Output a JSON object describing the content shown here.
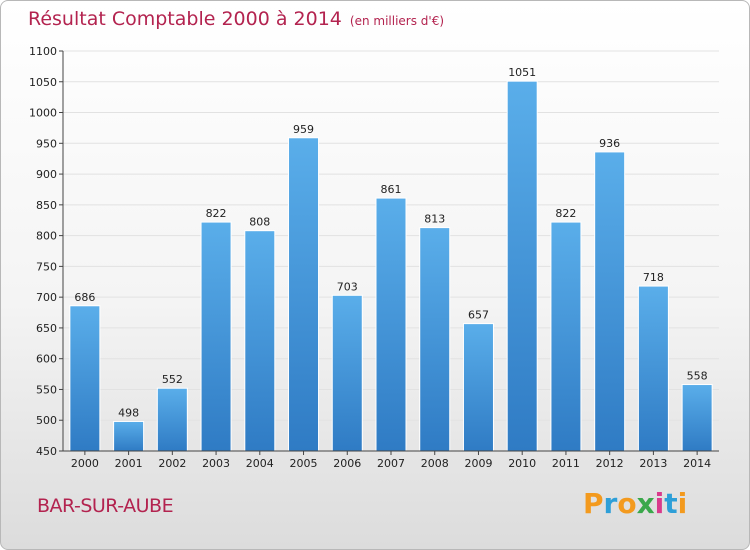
{
  "header": {
    "title": "Résultat Comptable 2000 à 2014",
    "subtitle": "(en milliers d'€)"
  },
  "footer": {
    "town": "BAR-SUR-AUBE"
  },
  "logo": {
    "letters": [
      "P",
      "r",
      "o",
      "x",
      "i",
      "t",
      "i"
    ],
    "colors": [
      "#f39a1e",
      "#2e9fd8",
      "#f39a1e",
      "#3aa84b",
      "#d93a8c",
      "#2e9fd8",
      "#f39a1e"
    ]
  },
  "colors": {
    "bar_top": "#5aaeea",
    "bar_bottom": "#2f7bc4",
    "grid": "#e2e2e2",
    "axis": "#444444"
  },
  "chart_data": {
    "type": "bar",
    "title": "Résultat Comptable 2000 à 2014",
    "subtitle": "(en milliers d'€)",
    "xlabel": "",
    "ylabel": "",
    "categories": [
      "2000",
      "2001",
      "2002",
      "2003",
      "2004",
      "2005",
      "2006",
      "2007",
      "2008",
      "2009",
      "2010",
      "2011",
      "2012",
      "2013",
      "2014"
    ],
    "values": [
      686,
      498,
      552,
      822,
      808,
      959,
      703,
      861,
      813,
      657,
      1051,
      822,
      936,
      718,
      558
    ],
    "ylim": [
      450,
      1100
    ],
    "yticks": [
      450,
      500,
      550,
      600,
      650,
      700,
      750,
      800,
      850,
      900,
      950,
      1000,
      1050,
      1100
    ],
    "grid": true
  }
}
